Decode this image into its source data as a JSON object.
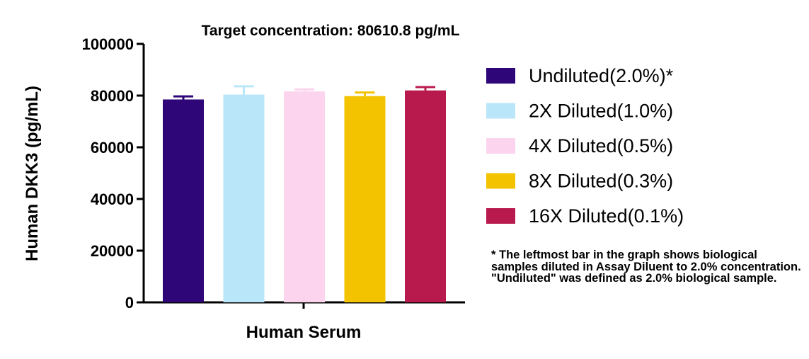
{
  "chart_data": {
    "type": "bar",
    "title": "Target concentration: 80610.8 pg/mL",
    "xlabel": "Human Serum",
    "ylabel": "Human DKK3 (pg/mL)",
    "ylim": [
      0,
      100000
    ],
    "yticks": [
      0,
      20000,
      40000,
      60000,
      80000,
      100000
    ],
    "grid": false,
    "legend_position": "right",
    "series": [
      {
        "name": "Undiluted(2.0%)*",
        "value": 78500,
        "error": 1200,
        "color": "#2e0678"
      },
      {
        "name": "2X Diluted(1.0%)",
        "value": 80400,
        "error": 3200,
        "color": "#b9e6f8"
      },
      {
        "name": "4X Diluted(0.5%)",
        "value": 81600,
        "error": 800,
        "color": "#fcd4ee"
      },
      {
        "name": "8X Diluted(0.3%)",
        "value": 79800,
        "error": 1400,
        "color": "#f3c300"
      },
      {
        "name": "16X Diluted(0.1%)",
        "value": 82000,
        "error": 1300,
        "color": "#b91a4e"
      }
    ]
  },
  "footnote": "* The leftmost bar in the graph shows biological samples diluted in Assay Diluent to 2.0% concentration. \"Undiluted\" was defined as 2.0% biological sample."
}
